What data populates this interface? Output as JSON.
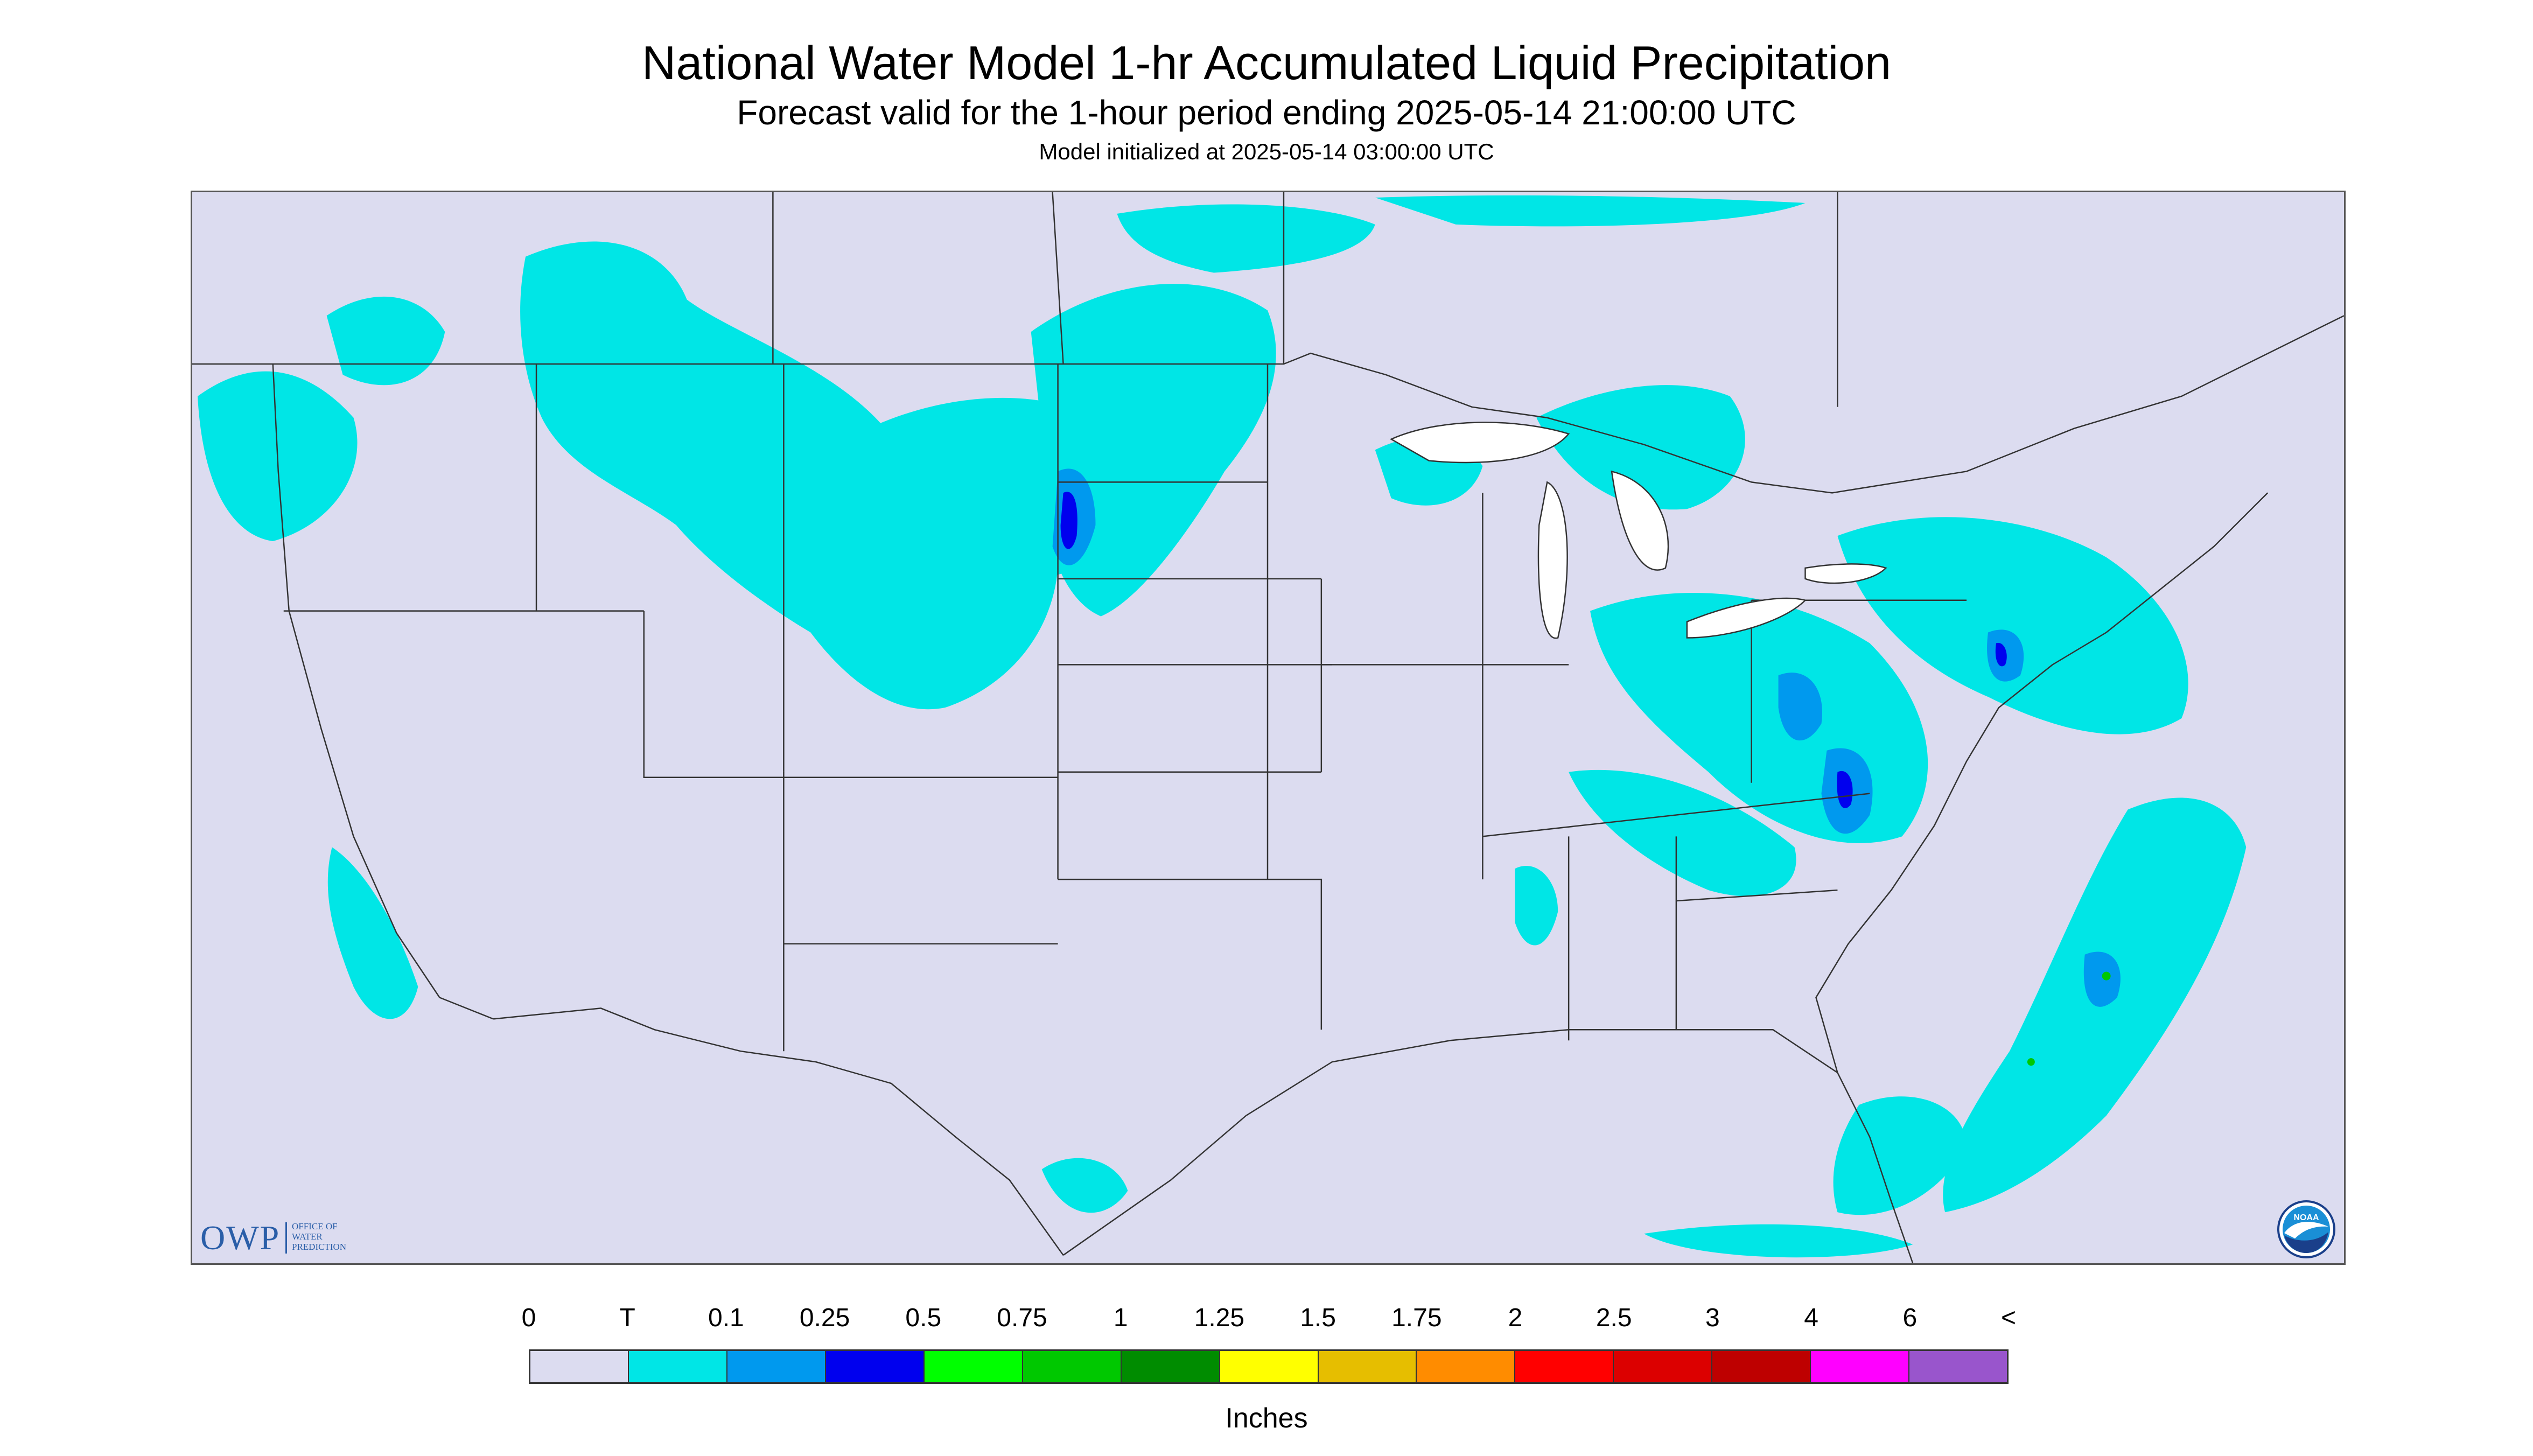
{
  "header": {
    "title": "National Water Model 1-hr Accumulated Liquid Precipitation",
    "subtitle": "Forecast valid for the 1-hour period ending 2025-05-14 21:00:00 UTC",
    "init_line": "Model initialized at 2025-05-14 03:00:00 UTC"
  },
  "logos": {
    "owp_text": "OWP",
    "owp_sub": [
      "OFFICE OF",
      "WATER",
      "PREDICTION"
    ],
    "noaa_text": "NOAA"
  },
  "legend": {
    "labels": [
      "0",
      "T",
      "0.1",
      "0.25",
      "0.5",
      "0.75",
      "1",
      "1.25",
      "1.5",
      "1.75",
      "2",
      "2.5",
      "3",
      "4",
      "6",
      "<"
    ],
    "colors": [
      "#dcdcf0",
      "#00e6e6",
      "#0099ee",
      "#0000ee",
      "#00ff00",
      "#00c800",
      "#008c00",
      "#ffff00",
      "#e6be00",
      "#ff8c00",
      "#ff0000",
      "#dc0000",
      "#be0000",
      "#ff00ff",
      "#9955cc"
    ],
    "units": "Inches"
  },
  "map_colors": {
    "outside_domain": "#dcdcf0",
    "trace": "#00e6e6",
    "light": "#0099ee",
    "moderate": "#0000ee",
    "border_lines": "#333333"
  }
}
